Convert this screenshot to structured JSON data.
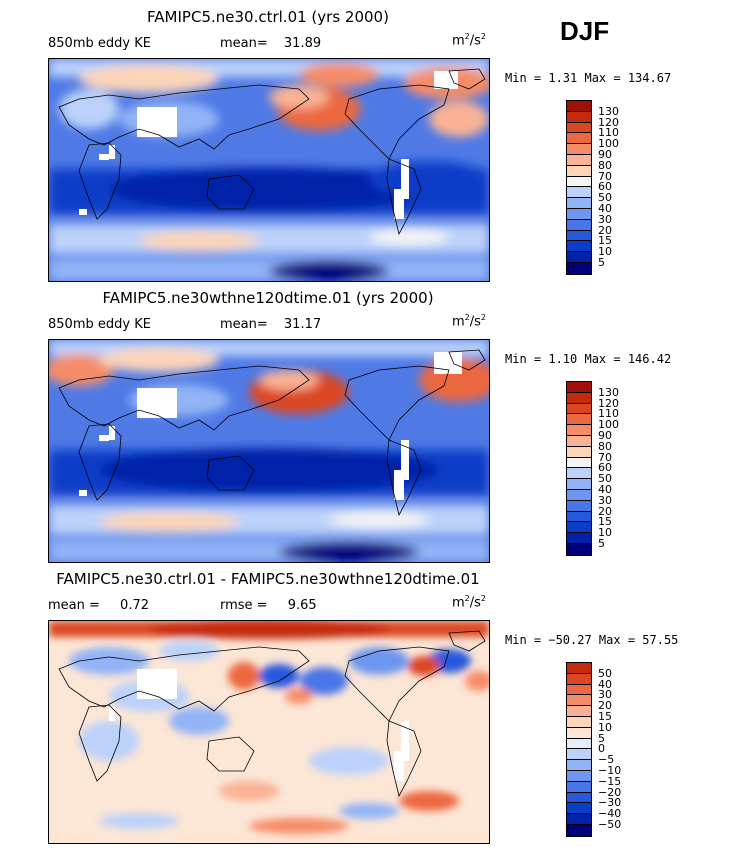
{
  "season": "DJF",
  "colors": {
    "seq": [
      "#00007a",
      "#0022a8",
      "#0a3ec8",
      "#2658dc",
      "#4876e8",
      "#6c96f0",
      "#92b4f6",
      "#bcd2fa",
      "#f4f4f4",
      "#fcd4b8",
      "#fab294",
      "#f68c68",
      "#ec6840",
      "#dc4620",
      "#c42a0c",
      "#a01004",
      "#780000"
    ],
    "div": [
      "#00007a",
      "#0022a8",
      "#0a3ec8",
      "#2658dc",
      "#4876e8",
      "#6c96f0",
      "#92b4f6",
      "#bcd2fa",
      "#e6eefc",
      "#fce6d6",
      "#fcd4b8",
      "#fab294",
      "#f68c68",
      "#ec6840",
      "#dc4620",
      "#c42a0c",
      "#a01004",
      "#780000"
    ]
  },
  "panels": [
    {
      "title": "FAMIPC5.ne30.ctrl.01 (yrs 2000)",
      "left_label": "850mb eddy KE",
      "stat_label": "mean=",
      "stat_value": "31.89",
      "units_base": "m",
      "units_sup1": "2",
      "units_mid": "/s",
      "units_sup2": "2",
      "minmax": "Min =   1.31 Max = 134.67"
    },
    {
      "title": "FAMIPC5.ne30wthne120dtime.01 (yrs 2000)",
      "left_label": "850mb eddy KE",
      "stat_label": "mean=",
      "stat_value": "31.17",
      "units_base": "m",
      "units_sup1": "2",
      "units_mid": "/s",
      "units_sup2": "2",
      "minmax": "Min =   1.10 Max = 146.42"
    },
    {
      "title": "FAMIPC5.ne30.ctrl.01 - FAMIPC5.ne30wthne120dtime.01",
      "left_label": "mean =",
      "left_value": "0.72",
      "stat_label": "rmse =",
      "stat_value": "9.65",
      "units_base": "m",
      "units_sup1": "2",
      "units_mid": "/s",
      "units_sup2": "2",
      "minmax": "Min = −50.27 Max =  57.55"
    }
  ],
  "chart_data": [
    {
      "type": "heatmap",
      "title": "FAMIPC5.ne30.ctrl.01 (yrs 2000)",
      "variable": "850mb eddy KE",
      "units": "m2/s2",
      "mean": 31.89,
      "min": 1.31,
      "max": 134.67,
      "colorbar_levels": [
        5,
        10,
        15,
        20,
        30,
        40,
        50,
        60,
        70,
        80,
        90,
        100,
        110,
        120,
        130
      ],
      "colorbar_labels": [
        "130",
        "120",
        "110",
        "100",
        "90",
        "80",
        "70",
        "60",
        "50",
        "40",
        "30",
        "20",
        "15",
        "10",
        "5"
      ]
    },
    {
      "type": "heatmap",
      "title": "FAMIPC5.ne30wthne120dtime.01 (yrs 2000)",
      "variable": "850mb eddy KE",
      "units": "m2/s2",
      "mean": 31.17,
      "min": 1.1,
      "max": 146.42,
      "colorbar_levels": [
        5,
        10,
        15,
        20,
        30,
        40,
        50,
        60,
        70,
        80,
        90,
        100,
        110,
        120,
        130
      ],
      "colorbar_labels": [
        "130",
        "120",
        "110",
        "100",
        "90",
        "80",
        "70",
        "60",
        "50",
        "40",
        "30",
        "20",
        "15",
        "10",
        "5"
      ]
    },
    {
      "type": "heatmap",
      "title": "FAMIPC5.ne30.ctrl.01 - FAMIPC5.ne30wthne120dtime.01",
      "units": "m2/s2",
      "mean": 0.72,
      "rmse": 9.65,
      "min": -50.27,
      "max": 57.55,
      "colorbar_levels": [
        -50,
        -40,
        -30,
        -20,
        -15,
        -10,
        -5,
        0,
        5,
        10,
        15,
        20,
        30,
        40,
        50
      ],
      "colorbar_labels": [
        "50",
        "40",
        "30",
        "20",
        "15",
        "10",
        "5",
        "0",
        "−5",
        "−10",
        "−15",
        "−20",
        "−30",
        "−40",
        "−50"
      ]
    }
  ]
}
